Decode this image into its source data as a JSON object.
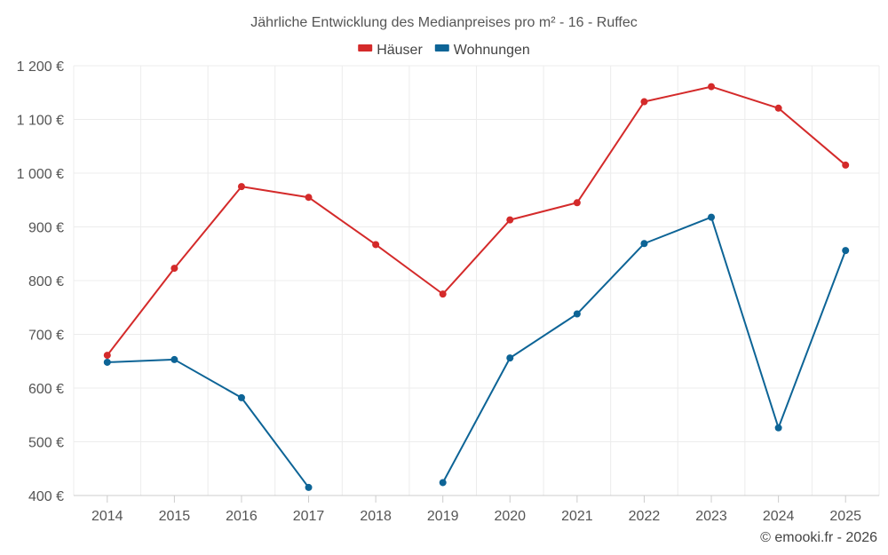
{
  "chart_data": {
    "type": "line",
    "title": "Jährliche Entwicklung des Medianpreises pro m² - 16 - Ruffec",
    "categories": [
      "2014",
      "2015",
      "2016",
      "2017",
      "2018",
      "2019",
      "2020",
      "2021",
      "2022",
      "2023",
      "2024",
      "2025"
    ],
    "series": [
      {
        "name": "Häuser",
        "color": "#d42a2a",
        "values": [
          661,
          823,
          975,
          955,
          867,
          775,
          913,
          945,
          1133,
          1161,
          1121,
          1015
        ]
      },
      {
        "name": "Wohnungen",
        "color": "#0d6496",
        "values": [
          648,
          653,
          582,
          415,
          null,
          424,
          656,
          738,
          869,
          918,
          526,
          856
        ]
      }
    ],
    "ylim": [
      400,
      1200
    ],
    "yticks": [
      400,
      500,
      600,
      700,
      800,
      900,
      1000,
      1100,
      1200
    ],
    "ytick_labels": [
      "400 €",
      "500 €",
      "600 €",
      "700 €",
      "800 €",
      "900 €",
      "1 000 €",
      "1 100 €",
      "1 200 €"
    ],
    "legend_position": "top-center",
    "grid": true,
    "credit": "© emooki.fr - 2026"
  }
}
